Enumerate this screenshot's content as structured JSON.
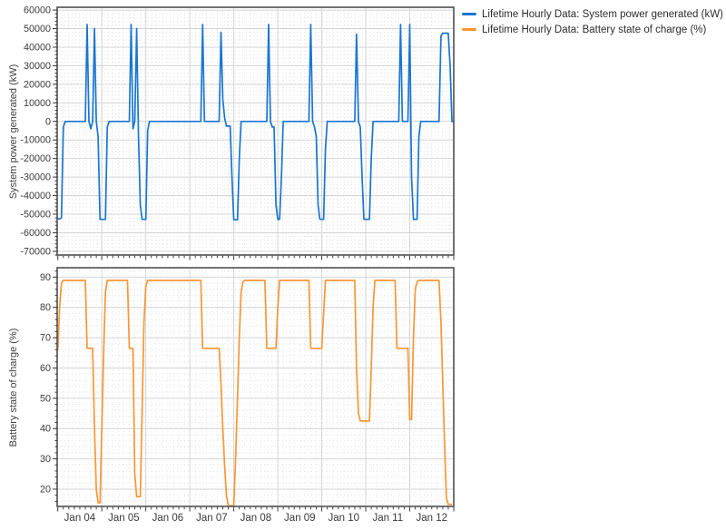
{
  "legend": {
    "items": [
      {
        "label": "Lifetime Hourly Data: System power generated (kW)",
        "color": "#1976D2"
      },
      {
        "label": "Lifetime Hourly Data: Battery state of charge (%)",
        "color": "#FA9634"
      }
    ]
  },
  "x_axis": {
    "tick_labels": [
      "Jan 04",
      "Jan 05",
      "Jan 06",
      "Jan 07",
      "Jan 08",
      "Jan 09",
      "Jan 10",
      "Jan 11",
      "Jan 12"
    ],
    "unit": "hours, Jan 04 00:00 through Jan 13 00:00"
  },
  "chart_data": [
    {
      "type": "line",
      "name": "Lifetime Hourly Data: System power generated (kW)",
      "ylabel": "System power generated (kW)",
      "color": "#1976D2",
      "ylim": [
        -72000,
        61500
      ],
      "yticks": [
        -70000,
        -60000,
        -50000,
        -40000,
        -30000,
        -20000,
        -10000,
        0,
        10000,
        20000,
        30000,
        40000,
        50000,
        60000
      ],
      "ytick_step": 10000,
      "y_minor_step": 2000,
      "x_hours": [
        0,
        216
      ],
      "grid": true,
      "legend_position": "top-right",
      "values": [
        -52500,
        -52500,
        -52000,
        -3000,
        0,
        0,
        0,
        0,
        0,
        0,
        0,
        0,
        0,
        0,
        0,
        0,
        52200,
        0,
        -4000,
        0,
        50000,
        0,
        -8000,
        -52800,
        -52800,
        -52800,
        -52800,
        -3000,
        0,
        0,
        0,
        0,
        0,
        0,
        0,
        0,
        0,
        0,
        0,
        0,
        52200,
        -4000,
        0,
        50000,
        -8000,
        -45000,
        -52800,
        -52800,
        -52800,
        -5000,
        0,
        0,
        0,
        0,
        0,
        0,
        0,
        0,
        0,
        0,
        0,
        0,
        0,
        0,
        0,
        0,
        0,
        0,
        0,
        0,
        0,
        0,
        0,
        0,
        0,
        0,
        0,
        0,
        0,
        52200,
        0,
        0,
        0,
        0,
        0,
        0,
        0,
        0,
        0,
        48000,
        12000,
        2000,
        -2500,
        -2500,
        -2500,
        -30000,
        -53000,
        -53000,
        -53000,
        -20000,
        0,
        0,
        0,
        0,
        0,
        0,
        0,
        0,
        0,
        0,
        0,
        0,
        0,
        0,
        0,
        52200,
        0,
        -3000,
        -3000,
        -45000,
        -52800,
        -52800,
        -30000,
        0,
        0,
        0,
        0,
        0,
        0,
        0,
        0,
        0,
        0,
        0,
        0,
        0,
        0,
        0,
        52200,
        0,
        -3000,
        -8000,
        -45000,
        -52800,
        -52800,
        -52800,
        -15000,
        0,
        0,
        0,
        0,
        0,
        0,
        0,
        0,
        0,
        0,
        0,
        0,
        0,
        0,
        0,
        0,
        47000,
        0,
        -3000,
        -30000,
        -52800,
        -52800,
        -52800,
        -52800,
        -20000,
        0,
        0,
        0,
        0,
        0,
        0,
        0,
        0,
        0,
        0,
        0,
        0,
        0,
        0,
        0,
        52200,
        0,
        0,
        0,
        0,
        52200,
        -30000,
        -52800,
        -52800,
        -52800,
        -8000,
        0,
        0,
        0,
        0,
        0,
        0,
        0,
        0,
        0,
        0,
        0,
        46000,
        47500,
        47500,
        47500,
        47500,
        30000,
        0,
        0
      ]
    },
    {
      "type": "line",
      "name": "Lifetime Hourly Data: Battery state of charge (%)",
      "ylabel": "Battery state of charge (%)",
      "color": "#FA9634",
      "ylim": [
        14.3,
        93.1
      ],
      "yticks": [
        20,
        30,
        40,
        50,
        60,
        70,
        80,
        90
      ],
      "ytick_step": 10,
      "y_minor_step": 2,
      "x_hours": [
        0,
        216
      ],
      "grid": true,
      "legend_position": "top-right",
      "values": [
        66,
        80,
        88,
        88.9,
        88.9,
        88.9,
        88.9,
        88.9,
        88.9,
        88.9,
        88.9,
        88.9,
        88.9,
        88.9,
        88.9,
        88.9,
        66.5,
        66.5,
        66.5,
        66.5,
        40,
        20,
        15.5,
        15.5,
        40,
        65,
        85,
        88.9,
        88.9,
        88.9,
        88.9,
        88.9,
        88.9,
        88.9,
        88.9,
        88.9,
        88.9,
        88.9,
        88.9,
        66.5,
        66.5,
        66.5,
        25,
        17.5,
        17.5,
        17.5,
        45,
        75,
        87,
        88.9,
        88.9,
        88.9,
        88.9,
        88.9,
        88.9,
        88.9,
        88.9,
        88.9,
        88.9,
        88.9,
        88.9,
        88.9,
        88.9,
        88.9,
        88.9,
        88.9,
        88.9,
        88.9,
        88.9,
        88.9,
        88.9,
        88.9,
        88.9,
        88.9,
        88.9,
        88.9,
        88.9,
        88.9,
        88.9,
        66.5,
        66.5,
        66.5,
        66.5,
        66.5,
        66.5,
        66.5,
        66.5,
        66.5,
        66.5,
        55,
        40,
        28,
        18,
        14.5,
        14.5,
        14.5,
        14.5,
        30,
        50,
        70,
        85,
        88.5,
        88.9,
        88.9,
        88.9,
        88.9,
        88.9,
        88.9,
        88.9,
        88.9,
        88.9,
        88.9,
        88.9,
        88.9,
        66.5,
        66.5,
        66.5,
        66.5,
        66.5,
        66.5,
        80,
        88.9,
        88.9,
        88.9,
        88.9,
        88.9,
        88.9,
        88.9,
        88.9,
        88.9,
        88.9,
        88.9,
        88.9,
        88.9,
        88.9,
        88.9,
        88.9,
        88.9,
        66.5,
        66.5,
        66.5,
        66.5,
        66.5,
        66.5,
        66.5,
        78,
        88.9,
        88.9,
        88.9,
        88.9,
        88.9,
        88.9,
        88.9,
        88.9,
        88.9,
        88.9,
        88.9,
        88.9,
        88.9,
        88.9,
        88.9,
        88.9,
        88.9,
        60,
        45,
        42.5,
        42.5,
        42.5,
        42.5,
        42.5,
        42.5,
        60,
        80,
        88.9,
        88.9,
        88.9,
        88.9,
        88.9,
        88.9,
        88.9,
        88.9,
        88.9,
        88.9,
        88.9,
        88.9,
        66.5,
        66.5,
        66.5,
        66.5,
        66.5,
        66.5,
        66.5,
        43,
        43,
        70,
        86,
        88.5,
        88.9,
        88.9,
        88.9,
        88.9,
        88.9,
        88.9,
        88.9,
        88.9,
        88.9,
        88.9,
        88.9,
        88.9,
        75,
        55,
        35,
        17,
        15,
        15,
        15
      ]
    }
  ]
}
